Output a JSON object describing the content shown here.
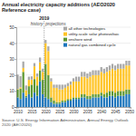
{
  "chart_data": {
    "type": "bar",
    "title": "Annual electricity capacity additions (AEO2020 Reference case)",
    "source": "Source: U.S. Energy Information Administration, Annual Energy Outlook 2020 (AEO2020)",
    "x": [
      2010,
      2011,
      2012,
      2013,
      2014,
      2015,
      2016,
      2017,
      2018,
      2019,
      2020,
      2021,
      2022,
      2023,
      2024,
      2025,
      2026,
      2027,
      2028,
      2029,
      2030,
      2031,
      2032,
      2033,
      2034,
      2035,
      2036,
      2037,
      2038,
      2039,
      2040,
      2041,
      2042,
      2043,
      2044,
      2045,
      2046,
      2047,
      2048,
      2049,
      2050
    ],
    "xlim": [
      2009.5,
      2050.5
    ],
    "xticks": [
      2010,
      2015,
      2020,
      2025,
      2030,
      2035,
      2040,
      2045,
      2050
    ],
    "ylim": [
      0,
      50
    ],
    "yticks": [
      0,
      10,
      20,
      30,
      40,
      50
    ],
    "grid": true,
    "stacked": true,
    "legend": "upper right",
    "annotations": [
      {
        "text": "2019",
        "x": 2019
      },
      {
        "text": "history"
      },
      {
        "text": "projections"
      }
    ],
    "series": [
      {
        "name": "natural gas combined cycle",
        "color": "#1b75bc",
        "values": [
          6,
          5,
          9,
          6,
          8,
          6,
          9,
          7,
          16,
          8,
          6,
          5,
          3,
          2,
          2,
          2,
          3,
          3,
          4,
          4,
          5,
          5,
          5,
          6,
          6,
          5,
          5,
          6,
          6,
          6,
          7,
          6,
          6,
          7,
          7,
          6,
          7,
          7,
          7,
          8,
          8
        ]
      },
      {
        "name": "onshore wind",
        "color": "#5d9732",
        "values": [
          5,
          6.5,
          13,
          1,
          5,
          8,
          8.5,
          6.5,
          7,
          9,
          21,
          15,
          3,
          2,
          1,
          1,
          1,
          1,
          1,
          1,
          1,
          1,
          1,
          2,
          2,
          2,
          2,
          2,
          2,
          2,
          2,
          2,
          3,
          3,
          3,
          3,
          3,
          3,
          3,
          3,
          3
        ]
      },
      {
        "name": "utility-scale solar photovoltaic",
        "color": "#ffc425",
        "values": [
          0.3,
          0.8,
          2.5,
          3.5,
          4,
          3.2,
          8,
          5.5,
          5,
          5,
          13,
          15,
          10,
          8,
          9,
          8,
          7,
          8,
          8,
          9,
          10,
          10,
          10,
          11,
          11,
          11,
          12,
          12,
          12,
          12,
          13,
          13,
          13,
          13,
          14,
          14,
          14,
          14,
          14,
          15,
          15
        ]
      },
      {
        "name": "all other technologies",
        "color": "#a8a8a8",
        "values": [
          9,
          7,
          4,
          3,
          2,
          2,
          2,
          2,
          3,
          2,
          2,
          3,
          2,
          2,
          2,
          3,
          3,
          2,
          2,
          2,
          2,
          3,
          3,
          3,
          3,
          3,
          3,
          3,
          3,
          3,
          3,
          3,
          3,
          3,
          3,
          3,
          3,
          3,
          3,
          3,
          3
        ]
      }
    ]
  }
}
